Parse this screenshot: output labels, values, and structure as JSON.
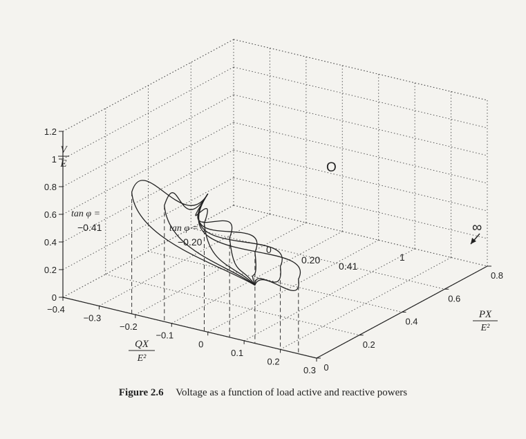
{
  "figure": {
    "caption_label": "Figure 2.6",
    "caption_text": "Voltage as a function of load active and reactive powers"
  },
  "chart_data": {
    "type": "surface",
    "title": "",
    "axes": {
      "qx": {
        "label_num": "QX",
        "label_den": "E²",
        "range": [
          -0.4,
          0.3
        ],
        "ticks": [
          -0.4,
          -0.3,
          -0.2,
          -0.1,
          0,
          0.1,
          0.2,
          0.3
        ],
        "tick_labels": [
          "−0.4",
          "−0.3",
          "−0.2",
          "−0.1",
          "0",
          "0.1",
          "0.2",
          "0.3"
        ]
      },
      "px": {
        "label_num": "PX",
        "label_den": "E²",
        "range": [
          0,
          0.8
        ],
        "ticks": [
          0,
          0.2,
          0.4,
          0.6,
          0.8
        ],
        "tick_labels": [
          "0",
          "0.2",
          "0.4",
          "0.6",
          "0.8"
        ]
      },
      "v": {
        "label_num": "V",
        "label_den": "E",
        "range": [
          0,
          1.2
        ],
        "ticks": [
          0,
          0.2,
          0.4,
          0.6,
          0.8,
          1,
          1.2
        ],
        "tick_labels": [
          "0",
          "0.2",
          "0.4",
          "0.6",
          "0.8",
          "1",
          "1.2"
        ]
      }
    },
    "grid": true,
    "series": [
      {
        "tan_phi": -0.41,
        "label": "−0.41",
        "nose": {
          "px": 0.0,
          "qx": -0.21,
          "v": 0.88
        }
      },
      {
        "tan_phi": -0.2,
        "label": "−0.20",
        "nose": {
          "px": 0.0,
          "qx": -0.12,
          "v": 0.84
        }
      },
      {
        "tan_phi": 0,
        "label": "0",
        "nose": {
          "px": 0.0,
          "qx": -0.01,
          "v": 0.78
        }
      },
      {
        "tan_phi": 0.2,
        "label": "0.20",
        "nose": {
          "px": 0.0,
          "qx": 0.06,
          "v": 0.72
        }
      },
      {
        "tan_phi": 0.41,
        "label": "0.41",
        "nose": {
          "px": 0.0,
          "qx": 0.13,
          "v": 0.66
        }
      },
      {
        "tan_phi": 1,
        "label": "1",
        "nose": {
          "px": 0.0,
          "qx": 0.2,
          "v": 0.6
        }
      },
      {
        "tan_phi": "inf",
        "label": "∞",
        "nose": {
          "px": 0.0,
          "qx": 0.25,
          "v": 0.54
        }
      }
    ],
    "annotations": {
      "origin_label": "O",
      "tan_label": "tan φ =",
      "tan_value_1": "−0.41",
      "tan_value_2": "−0.20",
      "label_0": "0",
      "label_020": "0.20",
      "label_041": "0.41",
      "label_1": "1",
      "label_inf": "∞"
    }
  }
}
